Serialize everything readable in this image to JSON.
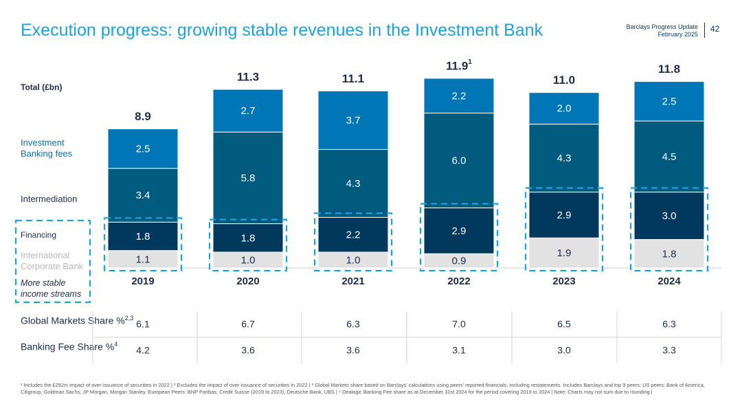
{
  "title": "Execution progress: growing stable revenues in the Investment Bank",
  "header": {
    "deck_name": "Barclays Progress Update",
    "date": "February 2025",
    "page_number": "42"
  },
  "row_labels": {
    "total": "Total (£bn)",
    "ib_fees": "Investment Banking fees",
    "intermediation": "Intermediation",
    "financing": "Financing",
    "icb": "International Corporate Bank",
    "stable": "More stable income streams"
  },
  "colors": {
    "ib_fees": "#0076b6",
    "intermediation": "#005b7f",
    "financing": "#00395d",
    "icb": "#e2e2e2",
    "accent": "#1aa3e0",
    "text_dark": "#1d2b4f"
  },
  "chart_data": {
    "type": "bar",
    "stacked": true,
    "categories": [
      "2019",
      "2020",
      "2021",
      "2022",
      "2023",
      "2024"
    ],
    "series": [
      {
        "key": "icb",
        "name": "International Corporate Bank",
        "values": [
          1.1,
          1.0,
          1.0,
          0.9,
          1.9,
          1.8
        ],
        "labels": [
          "1.1",
          "1.0",
          "1.0",
          "0.9",
          "1.9",
          "1.8"
        ]
      },
      {
        "key": "financing",
        "name": "Financing",
        "values": [
          1.8,
          1.8,
          2.2,
          2.9,
          2.9,
          3.0
        ],
        "labels": [
          "1.8",
          "1.8",
          "2.2",
          "2.9",
          "2.9",
          "3.0"
        ]
      },
      {
        "key": "intermediation",
        "name": "Intermediation",
        "values": [
          3.4,
          5.8,
          4.3,
          6.0,
          4.3,
          4.5
        ],
        "labels": [
          "3.4",
          "5.8",
          "4.3",
          "6.0",
          "4.3",
          "4.5"
        ]
      },
      {
        "key": "ib_fees",
        "name": "Investment Banking fees",
        "values": [
          2.5,
          2.7,
          3.7,
          2.2,
          2.0,
          2.5
        ],
        "labels": [
          "2.5",
          "2.7",
          "3.7",
          "2.2",
          "2.0",
          "2.5"
        ]
      }
    ],
    "totals": [
      8.9,
      11.3,
      11.1,
      11.9,
      11.0,
      11.8
    ],
    "total_labels": [
      "8.9",
      "11.3",
      "11.1",
      "11.9",
      "11.0",
      "11.8"
    ],
    "total_superscripts": [
      "",
      "",
      "",
      "1",
      "",
      ""
    ],
    "ylim": [
      0,
      12.2
    ],
    "highlight_note": "More stable income streams"
  },
  "table": {
    "rows": [
      {
        "label": "Global Markets Share %",
        "sup": "2,3",
        "values": [
          "6.1",
          "6.7",
          "6.3",
          "7.0",
          "6.5",
          "6.3"
        ]
      },
      {
        "label": "Banking Fee Share %",
        "sup": "4",
        "values": [
          "4.2",
          "3.6",
          "3.6",
          "3.1",
          "3.0",
          "3.3"
        ]
      }
    ]
  },
  "footnote": "¹ Includes the £292m impact of over-issuance of securities in 2022 | ² Excludes the impact of over-issuance of securities in 2022 | ³ Global Markets share based on Barclays' calculations using peers' reported financials, including restatements. Includes Barclays and top 9 peers: US peers: Bank of America, Citigroup, Goldman Sachs, JP Morgan, Morgan Stanley. European Peers: BNP Paribas, Credit Suisse (2019 to 2023), Deutsche Bank, UBS | ⁴ Dealogic Banking Fee share as at December 31st 2024 for the period covering 2019 to 2024 | Note: Charts may not sum due to rounding |"
}
